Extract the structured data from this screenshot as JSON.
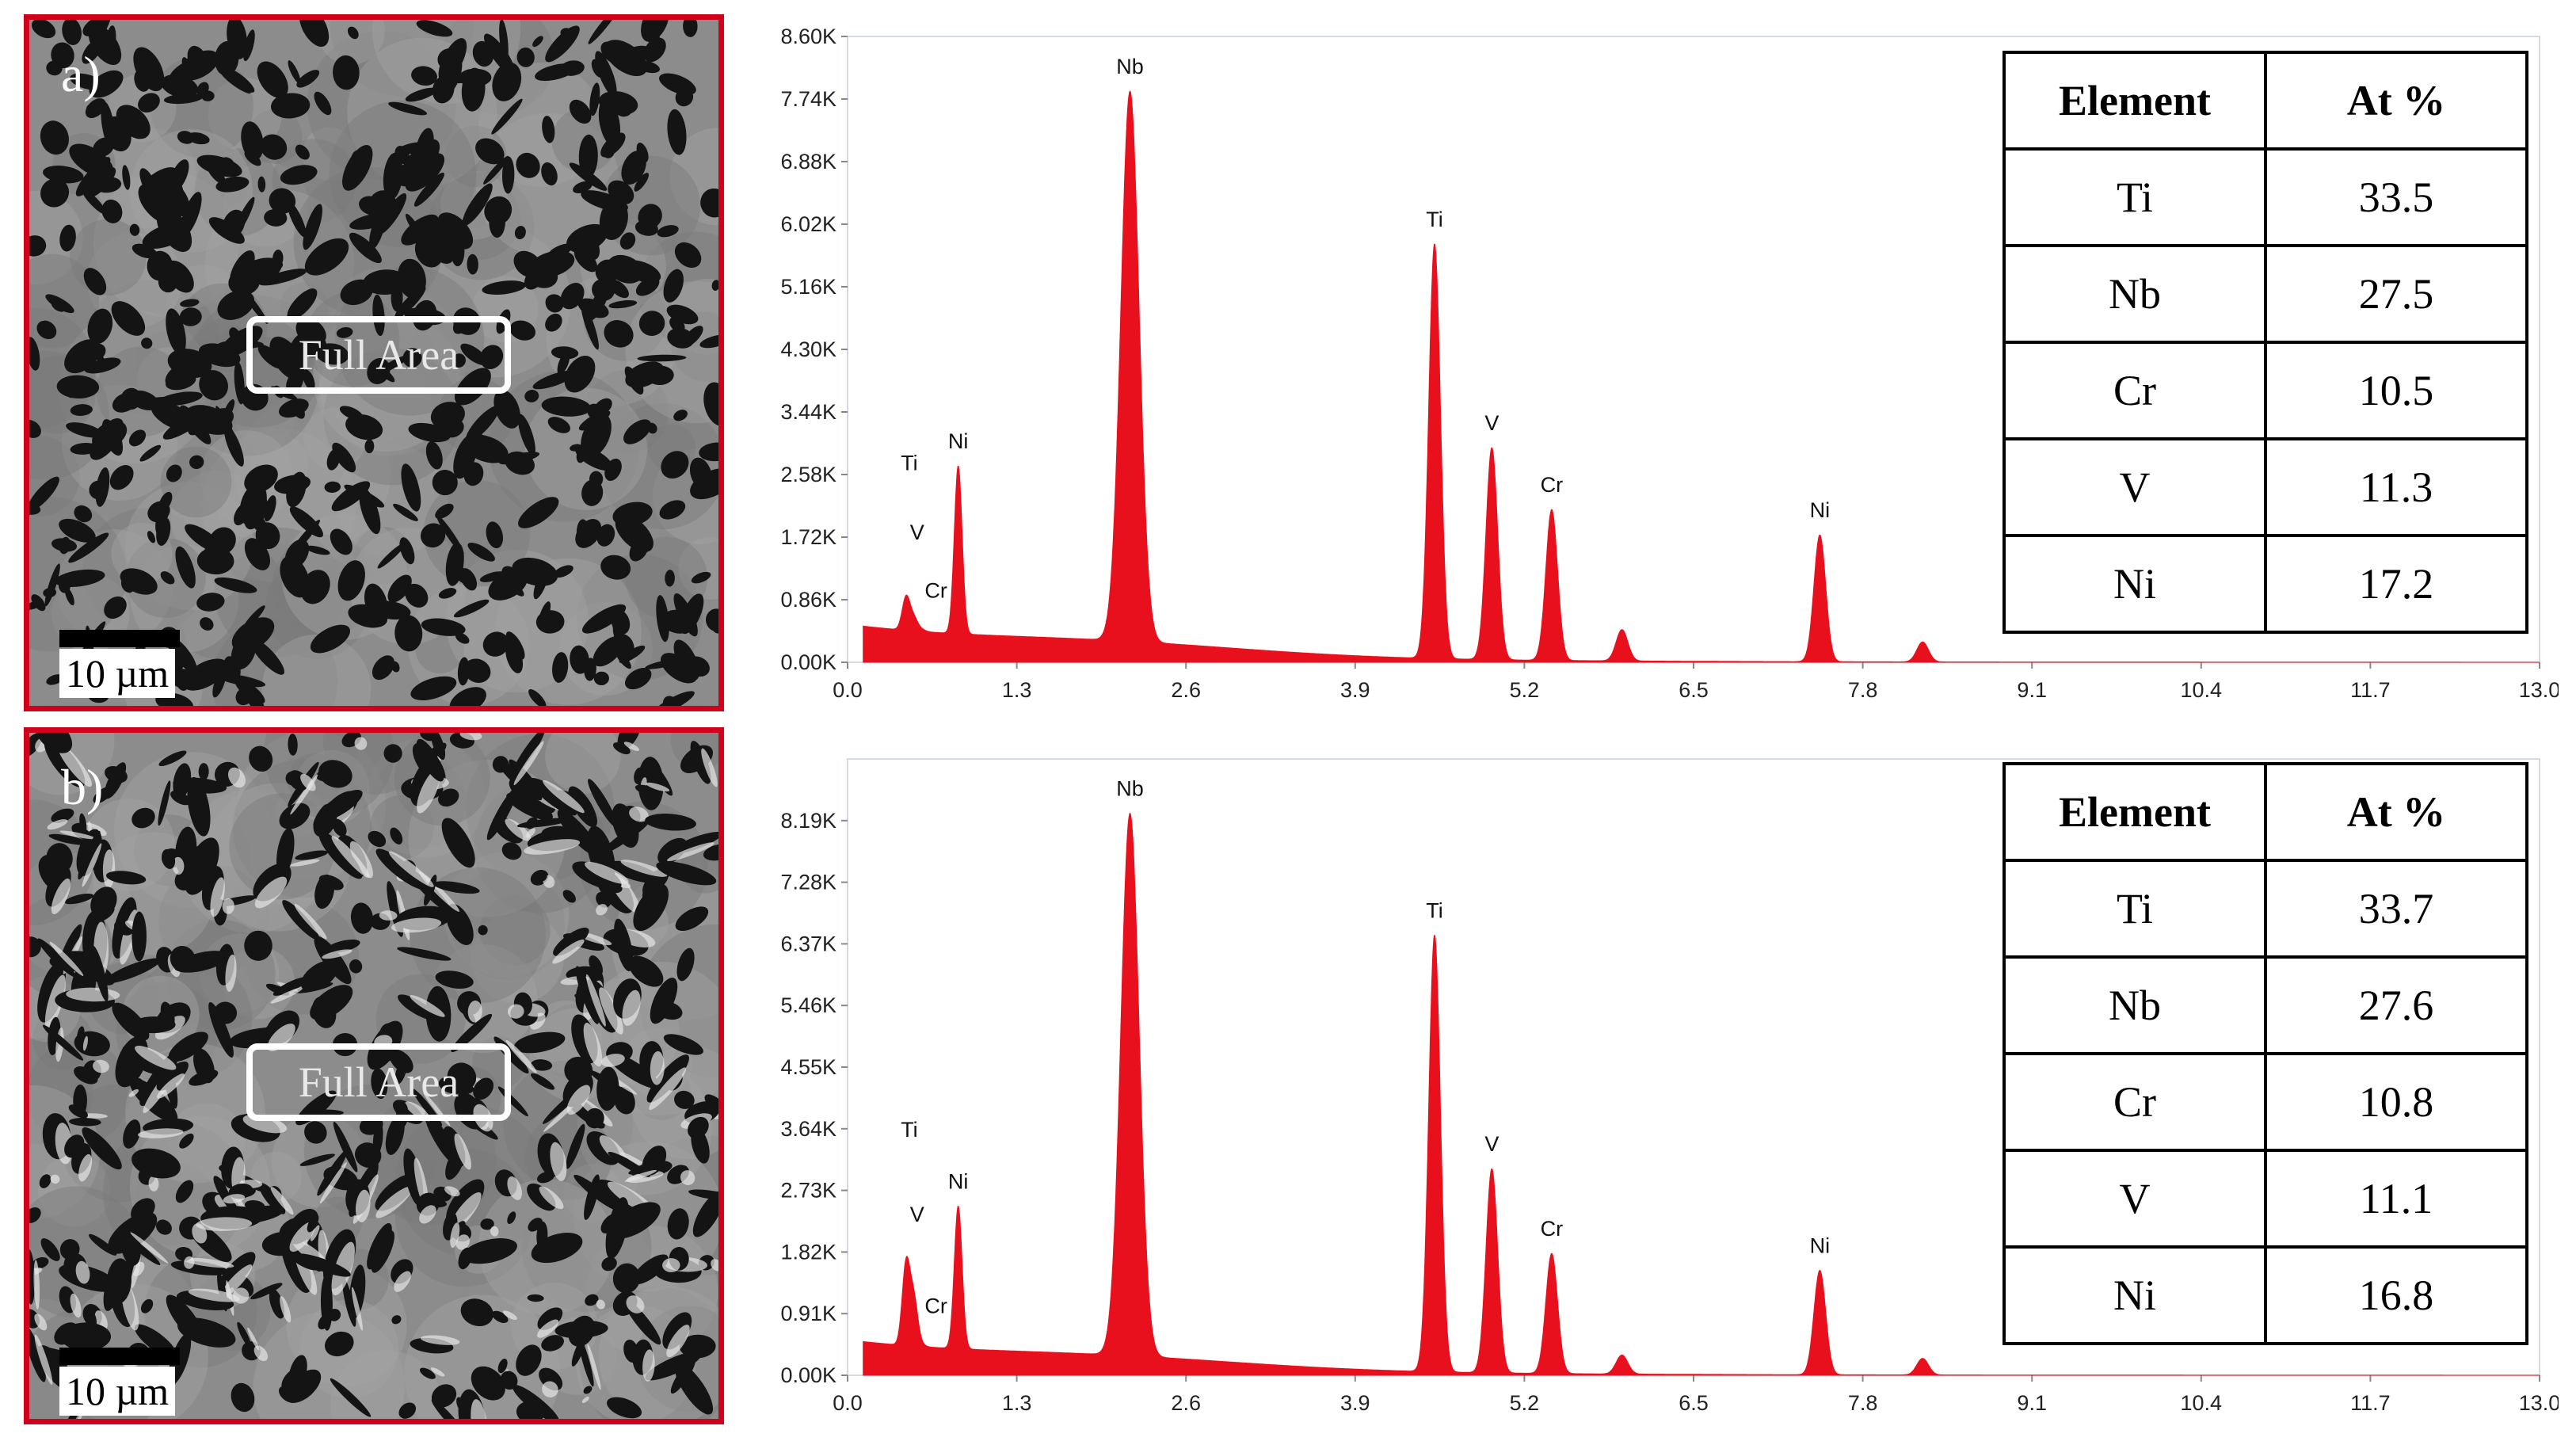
{
  "panels": [
    {
      "label": "a)",
      "area_label": "Full Area",
      "scalebar_label": "10 µm",
      "table": {
        "headers": [
          "Element",
          "At %"
        ],
        "rows": [
          [
            "Ti",
            "33.5"
          ],
          [
            "Nb",
            "27.5"
          ],
          [
            "Cr",
            "10.5"
          ],
          [
            "V",
            "11.3"
          ],
          [
            "Ni",
            "17.2"
          ]
        ]
      }
    },
    {
      "label": "b)",
      "area_label": "Full Area",
      "scalebar_label": "10 µm",
      "table": {
        "headers": [
          "Element",
          "At %"
        ],
        "rows": [
          [
            "Ti",
            "33.7"
          ],
          [
            "Nb",
            "27.6"
          ],
          [
            "Cr",
            "10.8"
          ],
          [
            "V",
            "11.1"
          ],
          [
            "Ni",
            "16.8"
          ]
        ]
      }
    }
  ],
  "chart_data": [
    {
      "type": "area",
      "title": "",
      "xlabel": "",
      "ylabel": "",
      "xlim": [
        0.0,
        13.0
      ],
      "ylim": [
        0,
        8600
      ],
      "x_ticks": [
        "0.0",
        "1.3",
        "2.6",
        "3.9",
        "5.2",
        "6.5",
        "7.8",
        "9.1",
        "10.4",
        "11.7",
        "13.0"
      ],
      "y_ticks": [
        "0.00K",
        "0.86K",
        "1.72K",
        "2.58K",
        "3.44K",
        "4.30K",
        "5.16K",
        "6.02K",
        "6.88K",
        "7.74K",
        "8.60K"
      ],
      "series_color": "#e8101c",
      "peaks": [
        {
          "label": "Ti",
          "x": 0.45,
          "y": 900
        },
        {
          "label": "V",
          "x": 0.51,
          "y": 600
        },
        {
          "label": "Cr",
          "x": 0.57,
          "y": 450
        },
        {
          "label": "Ni",
          "x": 0.85,
          "y": 2700
        },
        {
          "label": "Nb",
          "x": 2.17,
          "y": 7850
        },
        {
          "label": "Ti",
          "x": 4.51,
          "y": 5750
        },
        {
          "label": "V",
          "x": 4.95,
          "y": 2950
        },
        {
          "label": "Cr",
          "x": 5.41,
          "y": 2100
        },
        {
          "label": "Ni",
          "x": 7.47,
          "y": 1750
        }
      ],
      "minor_peaks": [
        {
          "x": 5.95,
          "y": 450
        },
        {
          "x": 8.26,
          "y": 280
        }
      ]
    },
    {
      "type": "area",
      "title": "",
      "xlabel": "",
      "ylabel": "",
      "xlim": [
        0.0,
        13.0
      ],
      "ylim": [
        0,
        9100
      ],
      "x_ticks": [
        "0.0",
        "1.3",
        "2.6",
        "3.9",
        "5.2",
        "6.5",
        "7.8",
        "9.1",
        "10.4",
        "11.7",
        "13.0"
      ],
      "y_ticks": [
        "0.00K",
        "0.91K",
        "1.82K",
        "2.73K",
        "3.64K",
        "4.55K",
        "5.46K",
        "6.37K",
        "7.28K",
        "8.19K"
      ],
      "series_color": "#e8101c",
      "peaks": [
        {
          "label": "Ti",
          "x": 0.45,
          "y": 1650
        },
        {
          "label": "V",
          "x": 0.51,
          "y": 1100
        },
        {
          "label": "Cr",
          "x": 0.57,
          "y": 450
        },
        {
          "label": "Ni",
          "x": 0.85,
          "y": 2500
        },
        {
          "label": "Nb",
          "x": 2.17,
          "y": 8300
        },
        {
          "label": "Ti",
          "x": 4.51,
          "y": 6500
        },
        {
          "label": "V",
          "x": 4.95,
          "y": 3050
        },
        {
          "label": "Cr",
          "x": 5.41,
          "y": 1800
        },
        {
          "label": "Ni",
          "x": 7.47,
          "y": 1550
        }
      ],
      "minor_peaks": [
        {
          "x": 5.95,
          "y": 300
        },
        {
          "x": 8.26,
          "y": 250
        }
      ]
    }
  ]
}
